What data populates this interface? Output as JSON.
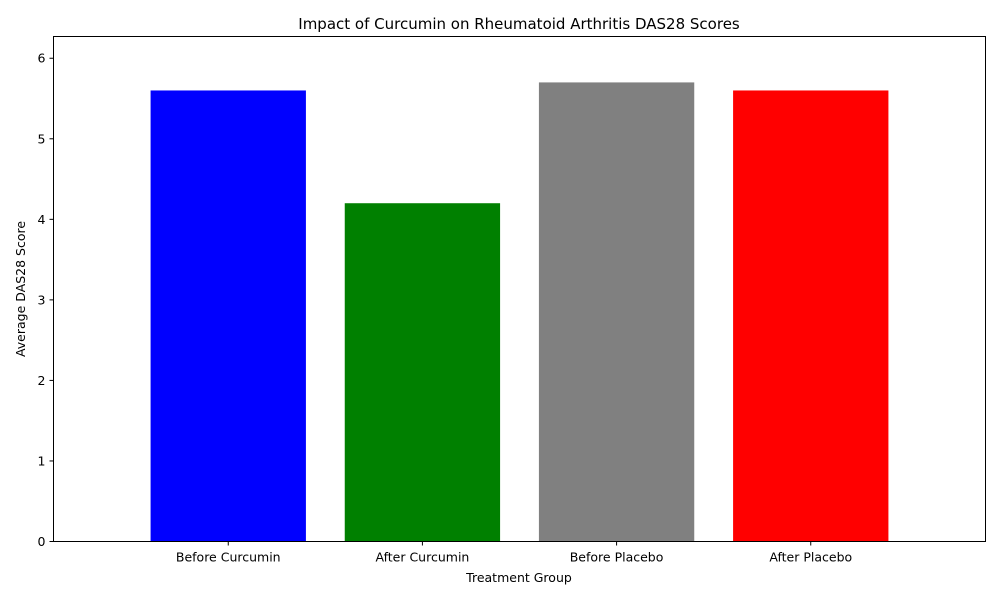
{
  "chart_data": {
    "type": "bar",
    "title": "Impact of Curcumin on Rheumatoid Arthritis DAS28 Scores",
    "xlabel": "Treatment Group",
    "ylabel": "Average DAS28 Score",
    "categories": [
      "Before Curcumin",
      "After Curcumin",
      "Before Placebo",
      "After Placebo"
    ],
    "values": [
      5.6,
      4.2,
      5.7,
      5.6
    ],
    "colors": [
      "#0000ff",
      "#008000",
      "#808080",
      "#ff0000"
    ],
    "ylim": [
      0,
      6.27
    ],
    "yticks": [
      0,
      1,
      2,
      3,
      4,
      5,
      6
    ],
    "grid": false,
    "legend": false
  }
}
